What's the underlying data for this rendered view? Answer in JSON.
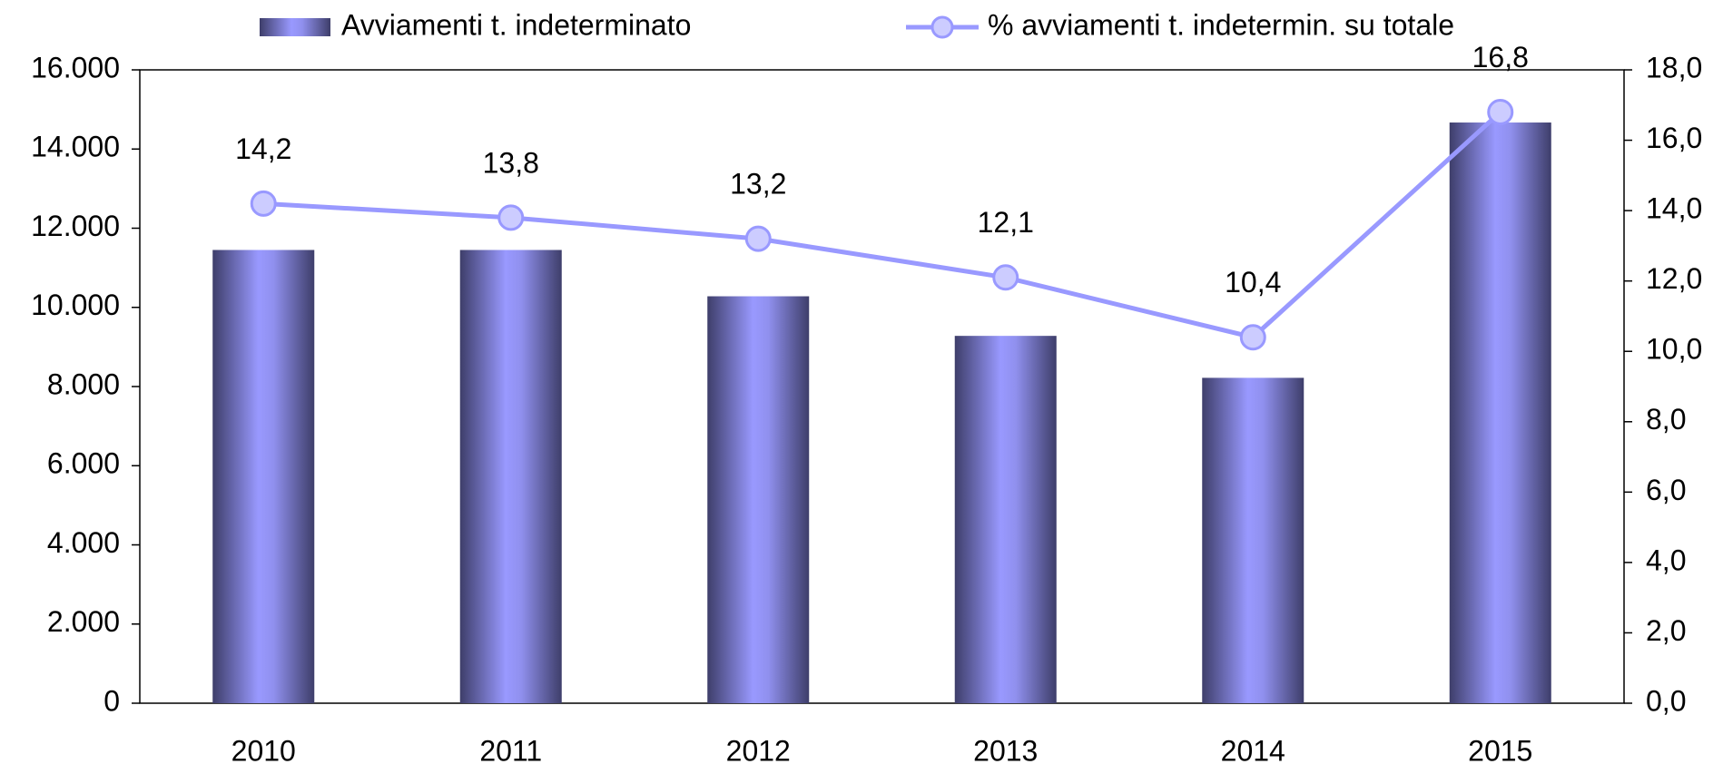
{
  "chart_data": {
    "type": "combo",
    "categories": [
      "2010",
      "2011",
      "2012",
      "2013",
      "2014",
      "2015"
    ],
    "series": [
      {
        "name": "Avviamenti t. indeterminato",
        "type": "bar",
        "color": "#9999ff",
        "values": [
          11450,
          11450,
          10280,
          9280,
          8220,
          14670
        ]
      },
      {
        "name": "% avviamenti t. indetermin. su totale",
        "type": "line",
        "axis": "y2",
        "color": "#9999ff",
        "values": [
          14.2,
          13.8,
          13.2,
          12.1,
          10.4,
          16.8
        ],
        "value_labels": [
          "14,2",
          "13,8",
          "13,2",
          "12,1",
          "10,4",
          "16,8"
        ]
      }
    ],
    "ylim": [
      0,
      16000
    ],
    "yticks": [
      0,
      {
        "value": 2000,
        "label": "2.000"
      },
      {
        "value": 4000,
        "label": "4.000"
      },
      {
        "value": 6000,
        "label": "6.000"
      },
      {
        "value": 8000,
        "label": "8.000"
      },
      {
        "value": 10000,
        "label": "10.000"
      },
      {
        "value": 12000,
        "label": "12.000"
      },
      {
        "value": 14000,
        "label": "14.000"
      },
      {
        "value": 16000,
        "label": "16.000"
      }
    ],
    "y2lim": [
      0,
      18
    ],
    "y2ticks": [
      {
        "value": 0,
        "label": "0,0"
      },
      {
        "value": 2,
        "label": "2,0"
      },
      {
        "value": 4,
        "label": "4,0"
      },
      {
        "value": 6,
        "label": "6,0"
      },
      {
        "value": 8,
        "label": "8,0"
      },
      {
        "value": 10,
        "label": "10,0"
      },
      {
        "value": 12,
        "label": "12,0"
      },
      {
        "value": 14,
        "label": "14,0"
      },
      {
        "value": 16,
        "label": "16,0"
      },
      {
        "value": 18,
        "label": "18,0"
      }
    ],
    "legend": "top"
  }
}
